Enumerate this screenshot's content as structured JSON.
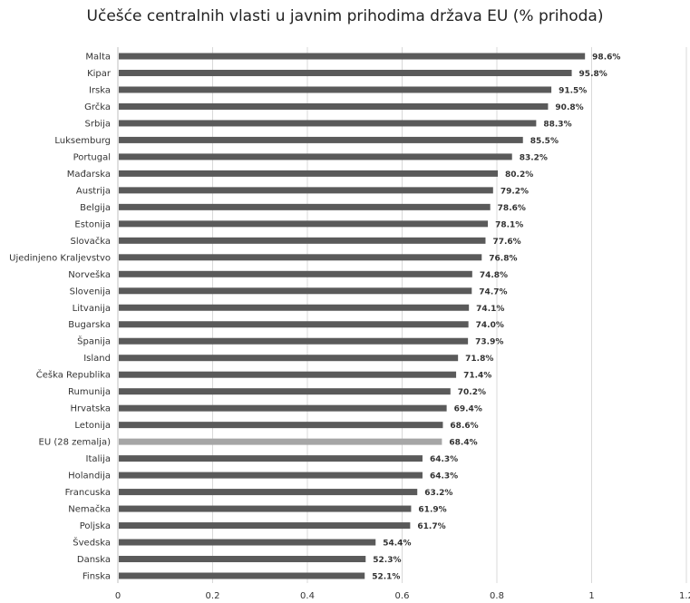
{
  "chart_data": {
    "type": "bar",
    "orientation": "horizontal",
    "title": "Učešće centralnih vlasti u javnim prihodima država EU (% prihoda)",
    "xlabel": "",
    "ylabel": "",
    "xlim": [
      0,
      1.2
    ],
    "ticks": [
      "0",
      "0.2",
      "0.4",
      "0.6",
      "0.8",
      "1",
      "1.2"
    ],
    "tick_values": [
      0,
      0.2,
      0.4,
      0.6,
      0.8,
      1.0,
      1.2
    ],
    "grid": true,
    "legend": "none",
    "colors": {
      "bar": "#5a5a5a",
      "highlight": "#a6a6a6"
    },
    "highlight_category": "EU (28 zemalja)",
    "categories": [
      "Malta",
      "Kipar",
      "Irska",
      "Grčka",
      "Srbija",
      "Luksemburg",
      "Portugal",
      "Mađarska",
      "Austrija",
      "Belgija",
      "Estonija",
      "Slovačka",
      "Ujedinjeno Kraljevstvo",
      "Norveška",
      "Slovenija",
      "Litvanija",
      "Bugarska",
      "Španija",
      "Island",
      "Češka Republika",
      "Rumunija",
      "Hrvatska",
      "Letonija",
      "EU (28 zemalja)",
      "Italija",
      "Holandija",
      "Francuska",
      "Nemačka",
      "Poljska",
      "Švedska",
      "Danska",
      "Finska"
    ],
    "values": [
      0.986,
      0.958,
      0.915,
      0.908,
      0.883,
      0.855,
      0.832,
      0.802,
      0.792,
      0.786,
      0.781,
      0.776,
      0.768,
      0.748,
      0.747,
      0.741,
      0.74,
      0.739,
      0.718,
      0.714,
      0.702,
      0.694,
      0.686,
      0.684,
      0.643,
      0.643,
      0.632,
      0.619,
      0.617,
      0.544,
      0.523,
      0.521
    ],
    "data_labels": [
      "98.6%",
      "95.8%",
      "91.5%",
      "90.8%",
      "88.3%",
      "85.5%",
      "83.2%",
      "80.2%",
      "79.2%",
      "78.6%",
      "78.1%",
      "77.6%",
      "76.8%",
      "74.8%",
      "74.7%",
      "74.1%",
      "74.0%",
      "73.9%",
      "71.8%",
      "71.4%",
      "70.2%",
      "69.4%",
      "68.6%",
      "68.4%",
      "64.3%",
      "64.3%",
      "63.2%",
      "61.9%",
      "61.7%",
      "54.4%",
      "52.3%",
      "52.1%"
    ]
  }
}
